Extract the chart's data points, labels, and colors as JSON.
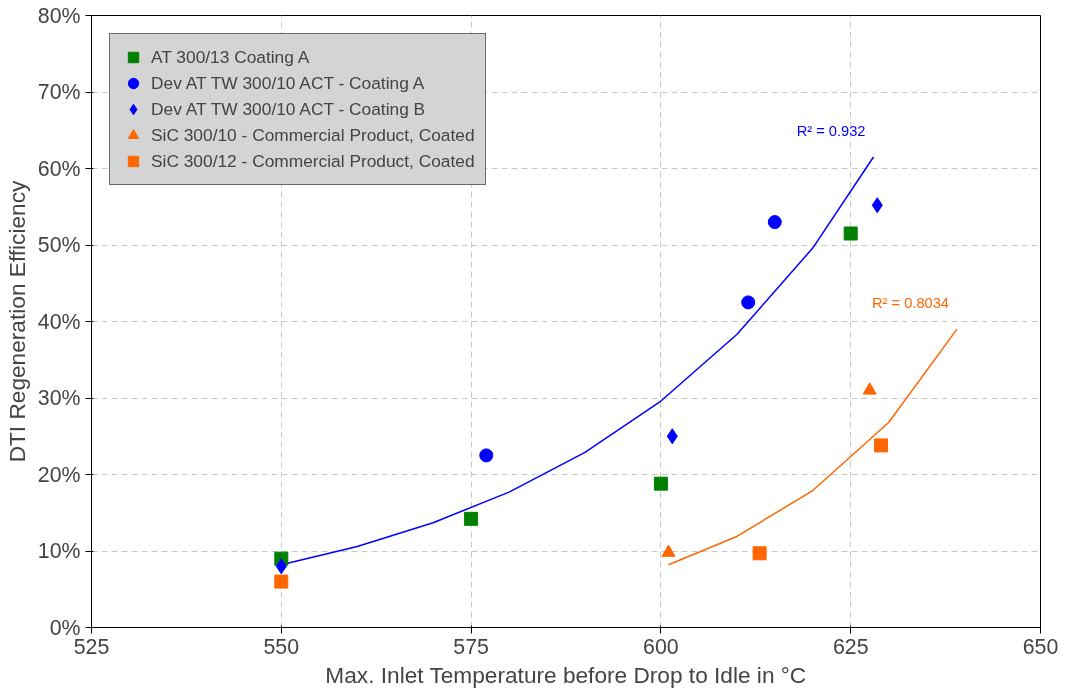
{
  "chart_data": {
    "type": "scatter",
    "xlabel": "Max. Inlet Temperature before Drop to Idle in °C",
    "ylabel": "DTI Regeneration Efficiency",
    "xlim": [
      525,
      650
    ],
    "xticks": [
      525,
      550,
      575,
      600,
      625,
      650
    ],
    "ylim": [
      0,
      80
    ],
    "yticks": [
      {
        "value": 0,
        "label": "0%"
      },
      {
        "value": 10,
        "label": "10%"
      },
      {
        "value": 20,
        "label": "20%"
      },
      {
        "value": 30,
        "label": "30%"
      },
      {
        "value": 40,
        "label": "40%"
      },
      {
        "value": 50,
        "label": "50%"
      },
      {
        "value": 60,
        "label": "60%"
      },
      {
        "value": 70,
        "label": "70%"
      },
      {
        "value": 80,
        "label": "80%"
      }
    ],
    "grid": true,
    "legend": "top left",
    "series": [
      {
        "type": "line",
        "color": "#0000ff",
        "x": [
          550,
          560,
          570,
          580,
          590,
          600,
          610,
          620,
          628
        ],
        "values": [
          8.2,
          10.6,
          13.7,
          17.7,
          22.9,
          29.6,
          38.3,
          49.6,
          61.5
        ]
      },
      {
        "type": "line",
        "color": "#ff6600",
        "x": [
          601,
          610,
          620,
          630,
          639
        ],
        "values": [
          8.2,
          11.9,
          17.9,
          26.8,
          39
        ]
      },
      {
        "name": "AT 300/13 Coating A",
        "color": "#008000",
        "marker": "square",
        "x": [
          550,
          575,
          600,
          625
        ],
        "values": [
          9,
          14.2,
          18.8,
          51.5
        ]
      },
      {
        "name": "Dev AT TW 300/10 ACT - Coating A",
        "color": "#0000ff",
        "marker": "circle",
        "x": [
          577,
          611.5,
          615
        ],
        "values": [
          22.5,
          42.5,
          53
        ]
      },
      {
        "name": "Dev AT TW 300/10 ACT - Coating B",
        "color": "#0000ff",
        "marker": "diamond",
        "x": [
          550,
          601.5,
          628.5
        ],
        "values": [
          8,
          25,
          55.2
        ]
      },
      {
        "name": "SiC 300/10 - Commercial Product, Coated",
        "color": "#ff6600",
        "marker": "triangle",
        "x": [
          601,
          627.5
        ],
        "values": [
          9.8,
          31
        ]
      },
      {
        "name": "SiC 300/12 - Commercial Product, Coated",
        "color": "#ff6600",
        "marker": "square",
        "x": [
          550,
          613,
          629
        ],
        "values": [
          6,
          9.7,
          23.8
        ]
      }
    ],
    "annotations": [
      "R² = 0.932",
      "R² = 0.8034"
    ]
  }
}
